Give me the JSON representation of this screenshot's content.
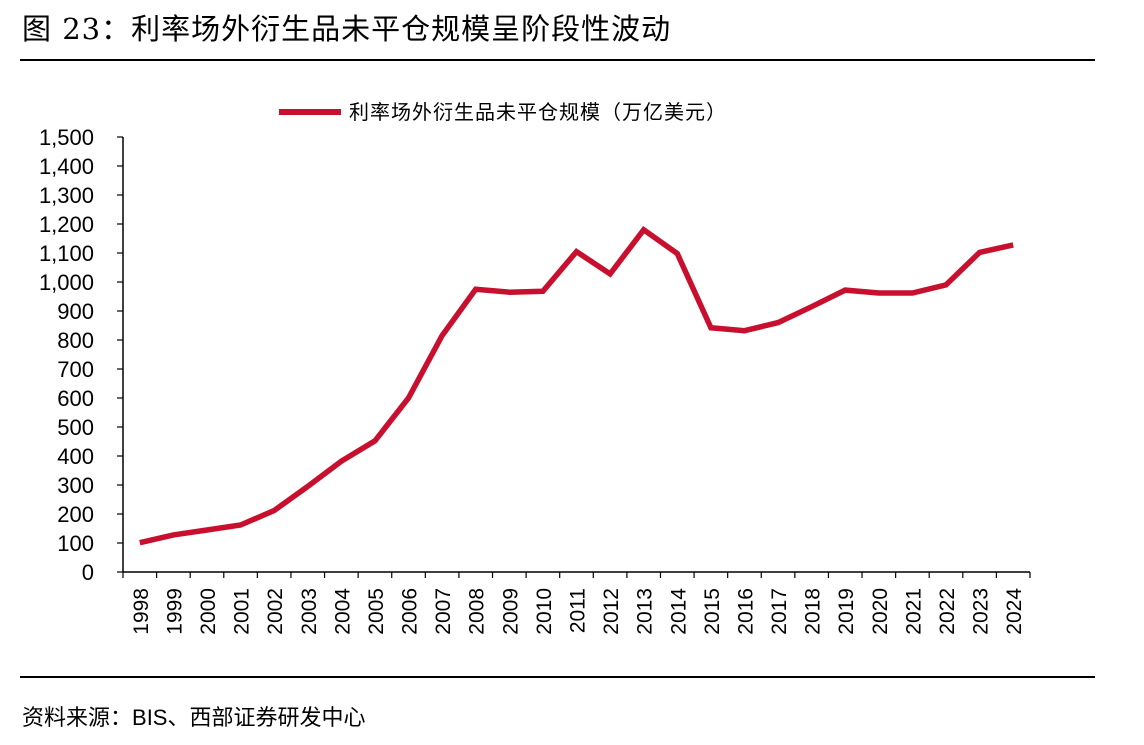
{
  "figure": {
    "title": "图 23：利率场外衍生品未平仓规模呈阶段性波动",
    "source_prefix": "资料来源：",
    "source_name": "BIS、西部证券研发中心"
  },
  "colors": {
    "series": "#c8102e",
    "axis": "#000000"
  },
  "chart_data": {
    "type": "line",
    "title": "",
    "xlabel": "",
    "ylabel": "",
    "x": [
      "1998",
      "1999",
      "2000",
      "2001",
      "2002",
      "2003",
      "2004",
      "2005",
      "2006",
      "2007",
      "2008",
      "2009",
      "2010",
      "2011",
      "2012",
      "2013",
      "2014",
      "2015",
      "2016",
      "2017",
      "2018",
      "2019",
      "2020",
      "2021",
      "2022",
      "2023",
      "2024"
    ],
    "series": [
      {
        "name": "利率场外衍生品未平仓规模（万亿美元）",
        "values": [
          101,
          128,
          145,
          162,
          212,
          295,
          382,
          452,
          600,
          815,
          975,
          965,
          968,
          1105,
          1028,
          1180,
          1098,
          842,
          832,
          860,
          915,
          972,
          962,
          962,
          990,
          1102,
          1128
        ]
      }
    ],
    "ylim": [
      0,
      1500
    ],
    "yticks": [
      0,
      100,
      200,
      300,
      400,
      500,
      600,
      700,
      800,
      900,
      1000,
      1100,
      1200,
      1300,
      1400,
      1500
    ],
    "ytick_labels": [
      "0",
      "100",
      "200",
      "300",
      "400",
      "500",
      "600",
      "700",
      "800",
      "900",
      "1,000",
      "1,100",
      "1,200",
      "1,300",
      "1,400",
      "1,500"
    ],
    "legend_position": "top-center",
    "grid": false
  }
}
